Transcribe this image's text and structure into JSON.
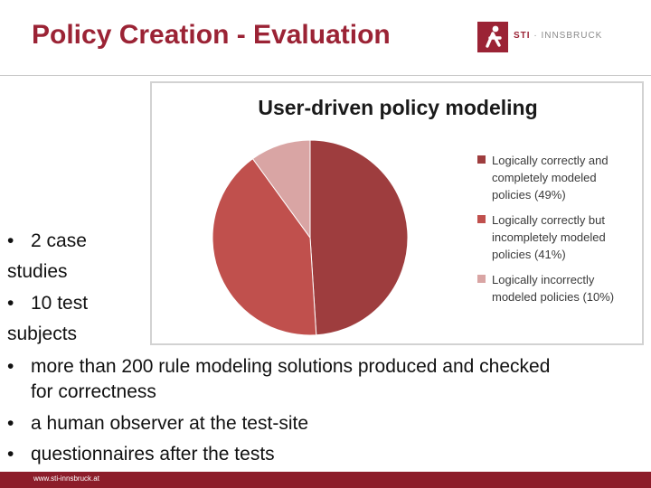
{
  "slide": {
    "title": "Policy Creation - Evaluation",
    "logo": {
      "text_a": "STI",
      "text_b": " · INNSBRUCK",
      "icon": "sti-figure-icon"
    },
    "footer_url": "www.sti-innsbruck.at"
  },
  "bullets": [
    {
      "marker": "•",
      "lines": [
        "2 case",
        "studies"
      ]
    },
    {
      "marker": "•",
      "lines": [
        "10 test",
        "subjects"
      ]
    },
    {
      "marker": "•",
      "lines": [
        "more than 200 rule modeling solutions produced and checked",
        "for correctness"
      ]
    },
    {
      "marker": "•",
      "lines": [
        "a human observer at the test-site"
      ]
    },
    {
      "marker": "•",
      "lines": [
        "questionnaires after the tests"
      ]
    }
  ],
  "chart_data": {
    "type": "pie",
    "title": "User-driven policy modeling",
    "legend_position": "right",
    "slices": [
      {
        "label": "Logically correctly and completely modeled policies (49%)",
        "value": 49,
        "color": "#9e3d3e"
      },
      {
        "label": "Logically correctly but incompletely modeled policies (41%)",
        "value": 41,
        "color": "#c0504d"
      },
      {
        "label": "Logically incorrectly modeled policies (10%)",
        "value": 10,
        "color": "#d9a5a4"
      }
    ]
  }
}
